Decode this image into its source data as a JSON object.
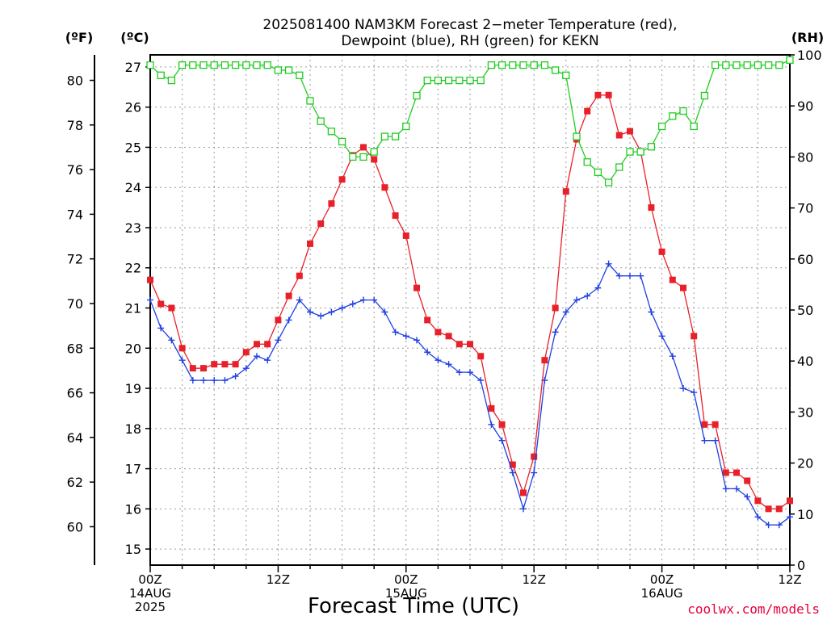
{
  "chart_data": {
    "type": "line",
    "title_line1": "2025081400 NAM3KM Forecast 2−meter Temperature (red),",
    "title_line2": "Dewpoint (blue), RH (green) for KEKN",
    "xlabel": "Forecast Time (UTC)",
    "unit_f": "(ºF)",
    "unit_c": "(ºC)",
    "unit_rh": "(RH)",
    "credit": "coolwx.com/models",
    "x_unit": "forecast hours from 00Z 14AUG 2025",
    "xlim": [
      0,
      60
    ],
    "ylim_c": [
      14.6,
      27.3
    ],
    "ylim_rh": [
      0,
      100
    ],
    "grid": true,
    "x_ticks": [
      {
        "h": 0,
        "lines": [
          "00Z",
          "14AUG",
          "2025"
        ]
      },
      {
        "h": 12,
        "lines": [
          "12Z"
        ]
      },
      {
        "h": 24,
        "lines": [
          "00Z",
          "15AUG"
        ]
      },
      {
        "h": 36,
        "lines": [
          "12Z"
        ]
      },
      {
        "h": 48,
        "lines": [
          "00Z",
          "16AUG"
        ]
      },
      {
        "h": 60,
        "lines": [
          "12Z"
        ]
      }
    ],
    "c_ticks": [
      15,
      16,
      17,
      18,
      19,
      20,
      21,
      22,
      23,
      24,
      25,
      26,
      27
    ],
    "f_ticks": [
      60,
      62,
      64,
      66,
      68,
      70,
      72,
      74,
      76,
      78,
      80
    ],
    "rh_ticks": [
      0,
      10,
      20,
      30,
      40,
      50,
      60,
      70,
      80,
      90,
      100
    ],
    "series": [
      {
        "key": "temperature",
        "color": "#e8202a",
        "marker": "filled-square",
        "axis": "c",
        "x": [
          0,
          1,
          2,
          3,
          4,
          5,
          6,
          7,
          8,
          9,
          10,
          11,
          12,
          13,
          14,
          15,
          16,
          17,
          18,
          19,
          20,
          21,
          22,
          23,
          24,
          25,
          26,
          27,
          28,
          29,
          30,
          31,
          32,
          33,
          34,
          35,
          36,
          37,
          38,
          39,
          40,
          41,
          42,
          43,
          44,
          45,
          46,
          47,
          48,
          49,
          50,
          51,
          52,
          53,
          54,
          55,
          56,
          57,
          58,
          59,
          60
        ],
        "values": [
          21.7,
          21.1,
          21.0,
          20.0,
          19.5,
          19.5,
          19.6,
          19.6,
          19.6,
          19.9,
          20.1,
          20.1,
          20.7,
          21.3,
          21.8,
          22.6,
          23.1,
          23.6,
          24.2,
          24.8,
          25.0,
          24.7,
          24.0,
          23.3,
          22.8,
          21.5,
          20.7,
          20.4,
          20.3,
          20.1,
          20.1,
          19.8,
          18.5,
          18.1,
          17.1,
          16.4,
          17.3,
          19.7,
          21.0,
          23.9,
          25.2,
          25.9,
          26.3,
          26.3,
          25.3,
          25.4,
          24.9,
          23.5,
          22.4,
          21.7,
          21.5,
          20.3,
          18.1,
          18.1,
          16.9,
          16.9,
          16.7,
          16.2,
          16.0,
          16.0,
          16.2
        ]
      },
      {
        "key": "dewpoint",
        "color": "#2040e0",
        "marker": "plus",
        "axis": "c",
        "x": [
          0,
          1,
          2,
          3,
          4,
          5,
          6,
          7,
          8,
          9,
          10,
          11,
          12,
          13,
          14,
          15,
          16,
          17,
          18,
          19,
          20,
          21,
          22,
          23,
          24,
          25,
          26,
          27,
          28,
          29,
          30,
          31,
          32,
          33,
          34,
          35,
          36,
          37,
          38,
          39,
          40,
          41,
          42,
          43,
          44,
          45,
          46,
          47,
          48,
          49,
          50,
          51,
          52,
          53,
          54,
          55,
          56,
          57,
          58,
          59,
          60
        ],
        "values": [
          21.2,
          20.5,
          20.2,
          19.7,
          19.2,
          19.2,
          19.2,
          19.2,
          19.3,
          19.5,
          19.8,
          19.7,
          20.2,
          20.7,
          21.2,
          20.9,
          20.8,
          20.9,
          21.0,
          21.1,
          21.2,
          21.2,
          20.9,
          20.4,
          20.3,
          20.2,
          19.9,
          19.7,
          19.6,
          19.4,
          19.4,
          19.2,
          18.1,
          17.7,
          16.9,
          16.0,
          16.9,
          19.2,
          20.4,
          20.9,
          21.2,
          21.3,
          21.5,
          22.1,
          21.8,
          21.8,
          21.8,
          20.9,
          20.3,
          19.8,
          19.0,
          18.9,
          17.7,
          17.7,
          16.5,
          16.5,
          16.3,
          15.8,
          15.6,
          15.6,
          15.8
        ]
      },
      {
        "key": "rh",
        "color": "#20cc20",
        "marker": "open-square",
        "axis": "rh",
        "x": [
          0,
          1,
          2,
          3,
          4,
          5,
          6,
          7,
          8,
          9,
          10,
          11,
          12,
          13,
          14,
          15,
          16,
          17,
          18,
          19,
          20,
          21,
          22,
          23,
          24,
          25,
          26,
          27,
          28,
          29,
          30,
          31,
          32,
          33,
          34,
          35,
          36,
          37,
          38,
          39,
          40,
          41,
          42,
          43,
          44,
          45,
          46,
          47,
          48,
          49,
          50,
          51,
          52,
          53,
          54,
          55,
          56,
          57,
          58,
          59,
          60
        ],
        "values": [
          98,
          96,
          95,
          98,
          98,
          98,
          98,
          98,
          98,
          98,
          98,
          98,
          97,
          97,
          96,
          91,
          87,
          85,
          83,
          80,
          80,
          81,
          84,
          84,
          86,
          92,
          95,
          95,
          95,
          95,
          95,
          95,
          98,
          98,
          98,
          98,
          98,
          98,
          97,
          96,
          84,
          79,
          77,
          75,
          78,
          81,
          81,
          82,
          86,
          88,
          89,
          86,
          92,
          98,
          98,
          98,
          98,
          98,
          98,
          98,
          99
        ]
      }
    ]
  }
}
